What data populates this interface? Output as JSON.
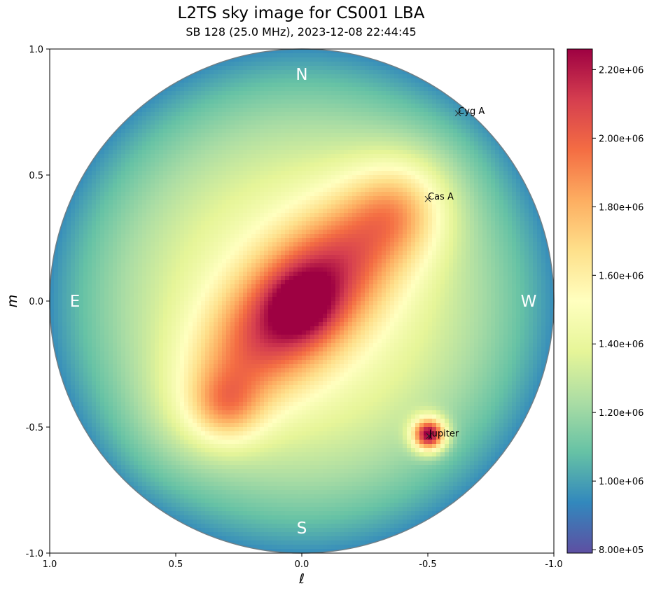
{
  "chart_data": {
    "type": "heatmap",
    "title": "L2TS sky image for CS001 LBA",
    "subtitle": "SB 128 (25.0 MHz), 2023-12-08 22:44:45",
    "xlabel": "ℓ",
    "ylabel": "m",
    "xlim": [
      1.0,
      -1.0
    ],
    "ylim": [
      -1.0,
      1.0
    ],
    "x_ticks": [
      "1.0",
      "0.5",
      "0.0",
      "-0.5",
      "-1.0"
    ],
    "y_ticks": [
      "1.0",
      "0.5",
      "0.0",
      "-0.5",
      "-1.0"
    ],
    "x_tick_values": [
      1.0,
      0.5,
      0.0,
      -0.5,
      -1.0
    ],
    "y_tick_values": [
      1.0,
      0.5,
      0.0,
      -0.5,
      -1.0
    ],
    "colormap": "Spectral_r",
    "colorbar": {
      "min": 790000,
      "max": 2260000,
      "ticks": [
        "8.00e+05",
        "1.00e+06",
        "1.20e+06",
        "1.40e+06",
        "1.60e+06",
        "1.80e+06",
        "2.00e+06",
        "2.20e+06"
      ],
      "tick_values": [
        800000,
        1000000,
        1200000,
        1400000,
        1600000,
        1800000,
        2000000,
        2200000
      ]
    },
    "compass": [
      {
        "label": "N",
        "l": 0.0,
        "m": 0.9
      },
      {
        "label": "S",
        "l": 0.0,
        "m": -0.9
      },
      {
        "label": "E",
        "l": 0.9,
        "m": 0.0
      },
      {
        "label": "W",
        "l": -0.9,
        "m": 0.0
      }
    ],
    "sources": [
      {
        "name": "Cyg A",
        "l": -0.62,
        "m": 0.745
      },
      {
        "name": "Cas A",
        "l": -0.5,
        "m": 0.405
      },
      {
        "name": "Jupiter",
        "l": -0.505,
        "m": -0.535
      }
    ]
  }
}
